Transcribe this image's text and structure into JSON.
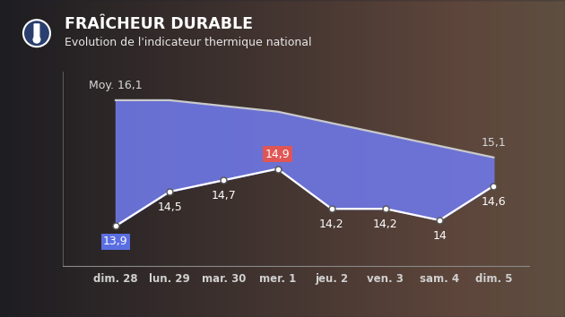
{
  "chart_data": {
    "type": "line",
    "title": "FRAÎCHEUR DURABLE",
    "subtitle": "Evolution de l'indicateur thermique national",
    "categories": [
      "dim. 28",
      "lun. 29",
      "mar. 30",
      "mer. 1",
      "jeu. 2",
      "ven. 3",
      "sam. 4",
      "dim. 5"
    ],
    "series": [
      {
        "color": "#c9c9c9",
        "line_style": "solid",
        "values": [
          16.1,
          16.1,
          16.0,
          15.9,
          15.7,
          15.5,
          15.3,
          15.1
        ],
        "value_labels": [
          "Moy. 16,1",
          null,
          null,
          null,
          null,
          null,
          null,
          "15,1"
        ]
      },
      {
        "color": "#ffffff",
        "line_style": "solid",
        "marker": "o",
        "values": [
          13.9,
          14.5,
          14.7,
          14.9,
          14.2,
          14.2,
          14,
          14.6
        ],
        "value_labels": [
          "13,9",
          "14,5",
          "14,7",
          "14,9",
          "14,2",
          "14,2",
          "14",
          "14,6"
        ]
      }
    ],
    "ylim": [
      13.2,
      16.6
    ],
    "tick_labels": "x",
    "data_labels": true
  }
}
